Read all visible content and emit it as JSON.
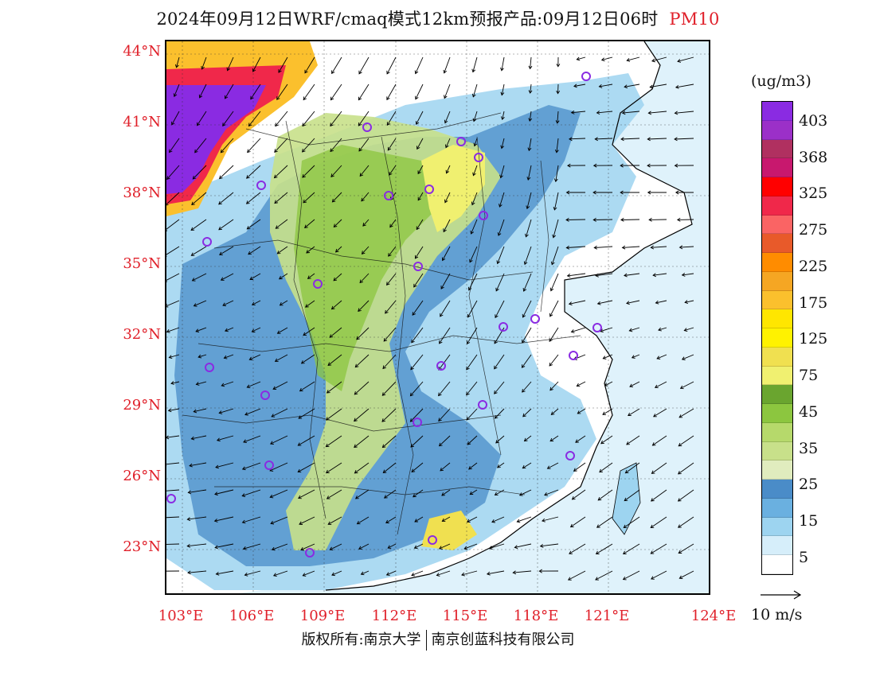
{
  "title": {
    "main": "2024年09月12日WRF/cmaq模式12km预报产品:09月12日06时",
    "species": "PM10"
  },
  "map": {
    "lat_labels": [
      "44°N",
      "41°N",
      "38°N",
      "35°N",
      "32°N",
      "29°N",
      "26°N",
      "23°N"
    ],
    "lon_labels": [
      "103°E",
      "106°E",
      "109°E",
      "112°E",
      "115°E",
      "118°E",
      "121°E",
      "124°E"
    ],
    "land_color": "#ffffff",
    "sea_color": "#dff2fb"
  },
  "legend": {
    "unit": "(ug/m3)",
    "segments": [
      {
        "color": "#8a2be2"
      },
      {
        "color": "#9b30c8"
      },
      {
        "color": "#b03060"
      },
      {
        "color": "#c8186e"
      },
      {
        "color": "#ff0000"
      },
      {
        "color": "#f0284a"
      },
      {
        "color": "#fa6464"
      },
      {
        "color": "#e85a2a"
      },
      {
        "color": "#ff8c00"
      },
      {
        "color": "#f5a623"
      },
      {
        "color": "#fbc02d"
      },
      {
        "color": "#ffe600"
      },
      {
        "color": "#fff200"
      },
      {
        "color": "#f0e050"
      },
      {
        "color": "#f0f070"
      },
      {
        "color": "#6aa52f"
      },
      {
        "color": "#8cc63f"
      },
      {
        "color": "#b6d96b"
      },
      {
        "color": "#c8e08a"
      },
      {
        "color": "#e0ecbe"
      },
      {
        "color": "#4a8cc8"
      },
      {
        "color": "#6ab0e0"
      },
      {
        "color": "#9dd4f0"
      },
      {
        "color": "#d6eefa"
      },
      {
        "color": "#ffffff"
      }
    ],
    "labels": [
      "403",
      "368",
      "325",
      "275",
      "225",
      "175",
      "125",
      "75",
      "45",
      "35",
      "25",
      "15",
      "5"
    ],
    "wind_ref": "10 m/s"
  },
  "footer": {
    "left": "版权所有:南京大学",
    "right": "南京创蓝科技有限公司"
  }
}
